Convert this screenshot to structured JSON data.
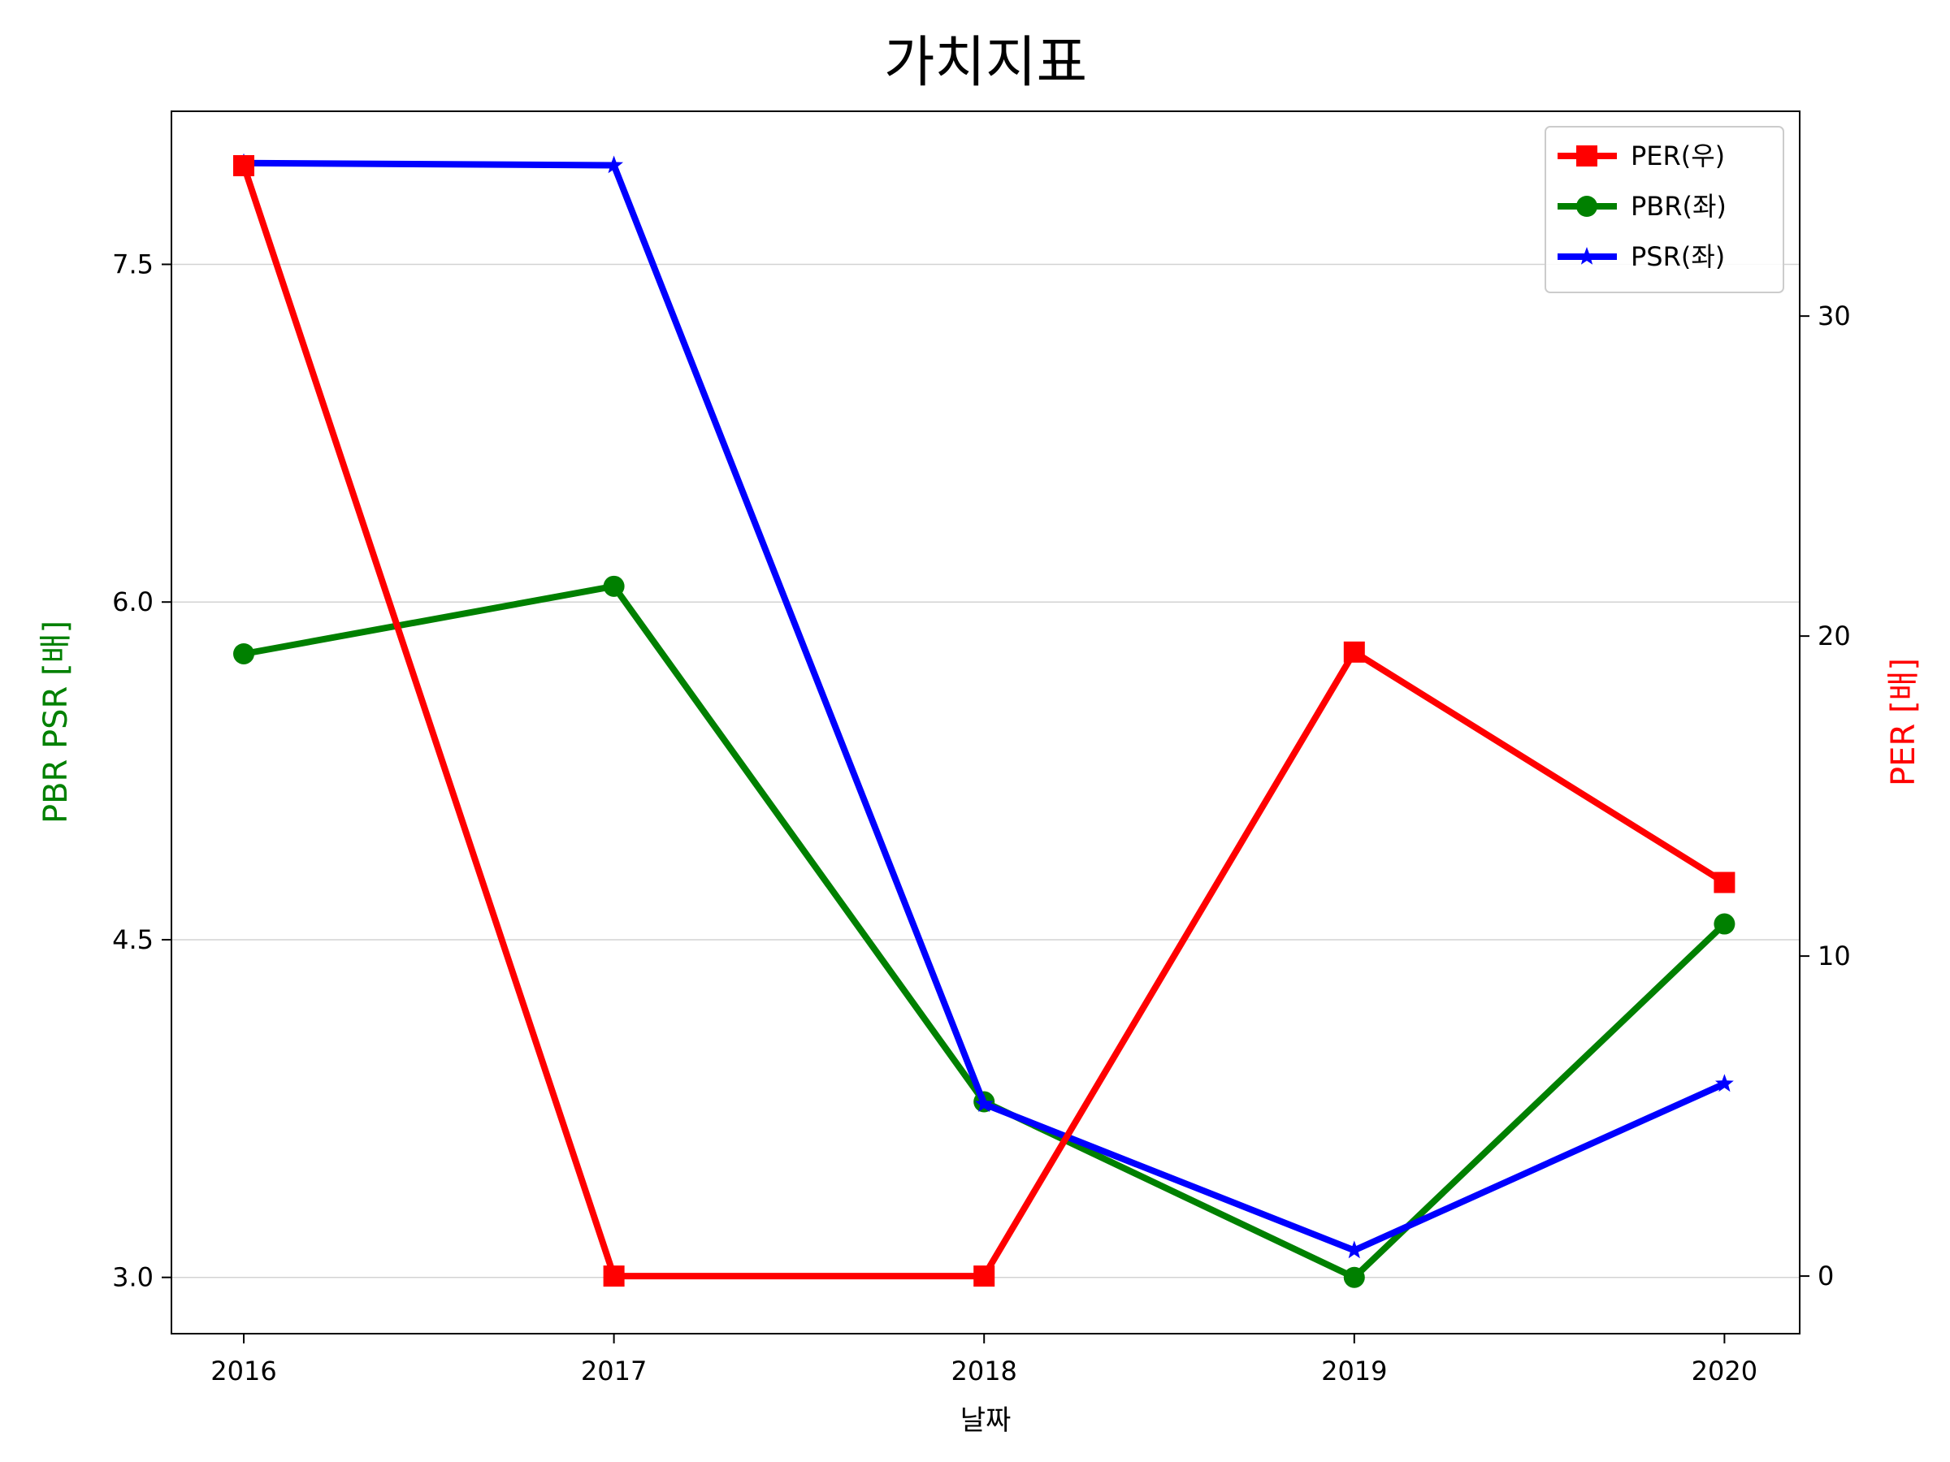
{
  "chart_data": {
    "type": "line",
    "title": "가치지표",
    "xlabel": "날짜",
    "ylabel_left": "PBR PSR [배]",
    "ylabel_right": "PER [배]",
    "categories": [
      "2016",
      "2017",
      "2018",
      "2019",
      "2020"
    ],
    "left_axis": {
      "ylim": [
        2.75,
        8.18
      ],
      "ticks": [
        3.0,
        4.5,
        6.0,
        7.5
      ],
      "tick_labels": [
        "3.0",
        "4.5",
        "6.0",
        "7.5"
      ],
      "color": "#008000"
    },
    "right_axis": {
      "ylim": [
        -1.8,
        36.4
      ],
      "ticks": [
        0,
        10,
        20,
        30
      ],
      "tick_labels": [
        "0",
        "10",
        "20",
        "30"
      ],
      "color": "#ff0000"
    },
    "grid": "horizontal",
    "legend_placement": "top-right",
    "series": [
      {
        "name": "PER(우)",
        "axis": "right",
        "color": "#ff0000",
        "marker": "square",
        "values": [
          34.7,
          0.0,
          0.0,
          19.5,
          12.3
        ]
      },
      {
        "name": "PBR(좌)",
        "axis": "left",
        "color": "#008000",
        "marker": "circle",
        "values": [
          5.77,
          6.07,
          3.78,
          3.0,
          4.57
        ]
      },
      {
        "name": "PSR(좌)",
        "axis": "left",
        "color": "#0000ff",
        "marker": "star",
        "values": [
          7.95,
          7.94,
          3.77,
          3.12,
          3.86
        ]
      }
    ]
  }
}
